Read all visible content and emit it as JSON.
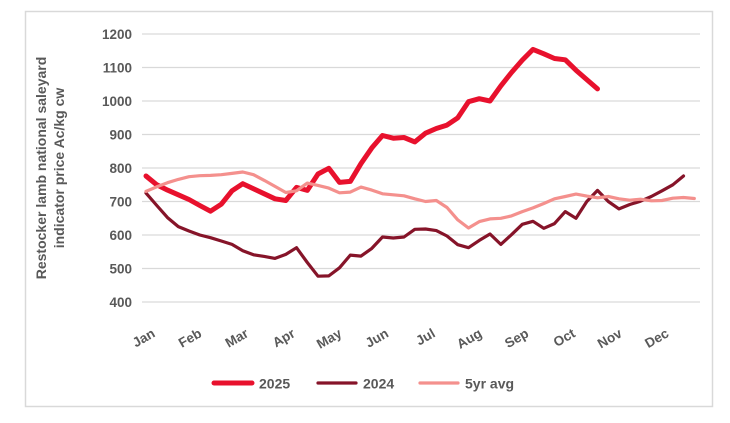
{
  "chart": {
    "y_axis": {
      "title_line1": "Restocker lamb national saleyard",
      "title_line2": "indicator price Ac/kg cw",
      "min": 400,
      "max": 1200,
      "step": 100
    },
    "x_axis": {
      "categories": [
        "Jan",
        "Feb",
        "Mar",
        "Apr",
        "May",
        "Jun",
        "Jul",
        "Aug",
        "Sep",
        "Oct",
        "Nov",
        "Dec"
      ]
    },
    "colors": {
      "gridline": "#d9d9d9",
      "frame_border": "#d9d9d9",
      "axis_text": "#595959",
      "background": "#ffffff"
    },
    "legend": [
      {
        "label": "2025",
        "color": "#e8112d"
      },
      {
        "label": "2024",
        "color": "#861429"
      },
      {
        "label": "5yr avg",
        "color": "#f4908d"
      }
    ]
  },
  "chart_data": {
    "type": "line",
    "title": "",
    "xlabel": "",
    "ylabel": "Restocker lamb national saleyard indicator price Ac/kg cw",
    "ylim": [
      400,
      1200
    ],
    "y_ticks": [
      400,
      500,
      600,
      700,
      800,
      900,
      1000,
      1100,
      1200
    ],
    "x_tick_labels": [
      "Jan",
      "Feb",
      "Mar",
      "Apr",
      "May",
      "Jun",
      "Jul",
      "Aug",
      "Sep",
      "Oct",
      "Nov",
      "Dec"
    ],
    "grid": "horizontal",
    "legend_position": "bottom",
    "x_unit": "weekly points starting at Jan, ~4.33 points per month",
    "series": [
      {
        "name": "2025",
        "color": "#e8112d",
        "stroke_width": 5,
        "values": [
          776,
          750,
          734,
          720,
          706,
          688,
          671,
          692,
          732,
          753,
          738,
          723,
          708,
          703,
          742,
          733,
          782,
          799,
          757,
          760,
          813,
          860,
          897,
          889,
          891,
          878,
          904,
          918,
          928,
          950,
          998,
          1007,
          1000,
          1045,
          1085,
          1122,
          1154,
          1141,
          1127,
          1123,
          1092,
          1064,
          1036
        ]
      },
      {
        "name": "2024",
        "color": "#861429",
        "stroke_width": 3.2,
        "values": [
          725,
          688,
          652,
          625,
          612,
          600,
          592,
          582,
          572,
          553,
          541,
          536,
          530,
          542,
          562,
          518,
          477,
          478,
          502,
          540,
          537,
          560,
          594,
          591,
          594,
          617,
          618,
          613,
          597,
          571,
          562,
          584,
          603,
          572,
          601,
          632,
          641,
          620,
          634,
          670,
          650,
          700,
          733,
          700,
          678,
          691,
          701,
          715,
          732,
          750,
          776
        ]
      },
      {
        "name": "5yr avg",
        "color": "#f4908d",
        "stroke_width": 3.2,
        "values": [
          730,
          744,
          756,
          766,
          774,
          777,
          778,
          780,
          784,
          788,
          780,
          763,
          745,
          727,
          732,
          755,
          748,
          740,
          726,
          728,
          743,
          734,
          723,
          720,
          717,
          708,
          700,
          703,
          682,
          645,
          621,
          640,
          648,
          650,
          657,
          670,
          681,
          694,
          708,
          715,
          722,
          716,
          711,
          715,
          708,
          704,
          707,
          702,
          703,
          710,
          712,
          709
        ]
      }
    ]
  }
}
